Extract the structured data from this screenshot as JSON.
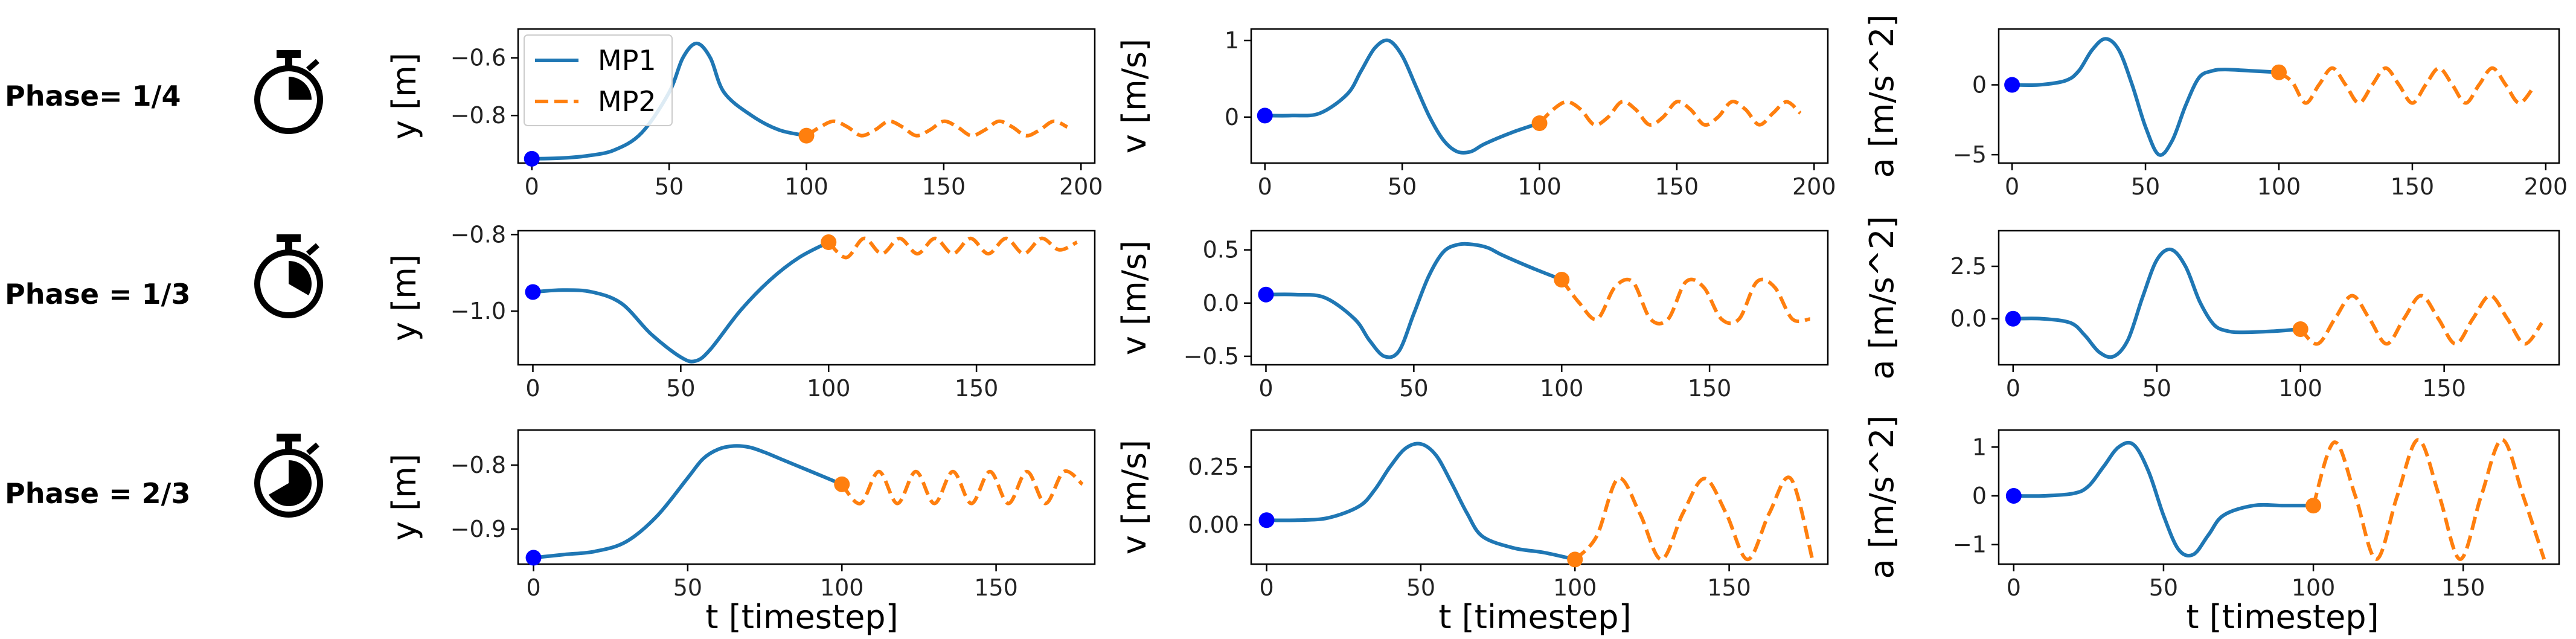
{
  "figure": {
    "rows": [
      {
        "label": "Phase= 1/4",
        "phase_fraction": 0.25
      },
      {
        "label": "Phase = 1/3",
        "phase_fraction": 0.3333
      },
      {
        "label": "Phase = 2/3",
        "phase_fraction": 0.6667
      }
    ],
    "legend": {
      "entries": [
        "MP1",
        "MP2"
      ],
      "location": "upper-left of top-left panel"
    },
    "colors": {
      "mp1": "#1f77b4",
      "mp2": "#ff7f0e",
      "start_dot": "#0000ff",
      "end_dot": "#ff7f0e"
    },
    "icons": [
      "stopwatch-icon"
    ]
  },
  "chart_data": [
    {
      "type": "line",
      "row": 0,
      "col": 0,
      "ylabel": "y [m]",
      "xlabel": "",
      "xticks": [
        0,
        50,
        100,
        150,
        200
      ],
      "yticks": [
        -0.8,
        -0.6
      ],
      "ytick_labels": [
        "−0.8",
        "−0.6"
      ],
      "xlim": [
        -5,
        205
      ],
      "ylim": [
        -0.965,
        -0.5
      ],
      "series": [
        {
          "name": "MP1",
          "x": [
            0,
            10,
            20,
            30,
            40,
            50,
            55,
            60,
            65,
            70,
            80,
            90,
            100
          ],
          "y": [
            -0.95,
            -0.948,
            -0.94,
            -0.92,
            -0.86,
            -0.72,
            -0.6,
            -0.55,
            -0.6,
            -0.72,
            -0.8,
            -0.85,
            -0.87
          ]
        },
        {
          "name": "MP2",
          "x": [
            100,
            105,
            110,
            115,
            120,
            125,
            130,
            135,
            140,
            145,
            150,
            155,
            160,
            165,
            170,
            175,
            180,
            185,
            190,
            195
          ],
          "y": [
            -0.87,
            -0.84,
            -0.82,
            -0.84,
            -0.87,
            -0.85,
            -0.82,
            -0.84,
            -0.87,
            -0.85,
            -0.82,
            -0.84,
            -0.87,
            -0.85,
            -0.82,
            -0.84,
            -0.87,
            -0.85,
            -0.82,
            -0.84
          ]
        }
      ],
      "points": [
        {
          "x": 0,
          "y": -0.95,
          "kind": "start"
        },
        {
          "x": 100,
          "y": -0.87,
          "kind": "end"
        }
      ]
    },
    {
      "type": "line",
      "row": 0,
      "col": 1,
      "ylabel": "v [m/s]",
      "xlabel": "",
      "xticks": [
        0,
        50,
        100,
        150,
        200
      ],
      "yticks": [
        0,
        1
      ],
      "ytick_labels": [
        "0",
        "1"
      ],
      "xlim": [
        -5,
        205
      ],
      "ylim": [
        -0.6,
        1.15
      ],
      "series": [
        {
          "name": "MP1",
          "x": [
            0,
            10,
            20,
            30,
            35,
            40,
            45,
            50,
            55,
            60,
            65,
            70,
            75,
            80,
            90,
            100
          ],
          "y": [
            0.02,
            0.02,
            0.05,
            0.3,
            0.6,
            0.9,
            1.0,
            0.8,
            0.4,
            0.0,
            -0.3,
            -0.45,
            -0.45,
            -0.35,
            -0.2,
            -0.08
          ]
        },
        {
          "name": "MP2",
          "x": [
            100,
            105,
            110,
            115,
            120,
            125,
            130,
            135,
            140,
            145,
            150,
            155,
            160,
            165,
            170,
            175,
            180,
            185,
            190,
            195
          ],
          "y": [
            -0.08,
            0.1,
            0.2,
            0.1,
            -0.1,
            0.0,
            0.2,
            0.1,
            -0.1,
            0.0,
            0.2,
            0.1,
            -0.1,
            0.0,
            0.2,
            0.1,
            -0.1,
            0.05,
            0.2,
            0.05
          ]
        }
      ],
      "points": [
        {
          "x": 0,
          "y": 0.02,
          "kind": "start"
        },
        {
          "x": 100,
          "y": -0.08,
          "kind": "end"
        }
      ]
    },
    {
      "type": "line",
      "row": 0,
      "col": 2,
      "ylabel": "a [m/s^2]",
      "xlabel": "",
      "xticks": [
        0,
        50,
        100,
        150,
        200
      ],
      "yticks": [
        -5,
        0
      ],
      "ytick_labels": [
        "−5",
        "0"
      ],
      "xlim": [
        -5,
        205
      ],
      "ylim": [
        -5.6,
        4.0
      ],
      "series": [
        {
          "name": "MP1",
          "x": [
            0,
            10,
            20,
            25,
            30,
            35,
            40,
            45,
            50,
            55,
            60,
            65,
            70,
            75,
            80,
            90,
            100
          ],
          "y": [
            0.0,
            0.0,
            0.3,
            1.0,
            2.5,
            3.3,
            2.5,
            0.0,
            -3.0,
            -5.0,
            -4.0,
            -1.5,
            0.5,
            1.0,
            1.1,
            1.0,
            0.9
          ]
        },
        {
          "name": "MP2",
          "x": [
            100,
            105,
            110,
            115,
            120,
            125,
            130,
            135,
            140,
            145,
            150,
            155,
            160,
            165,
            170,
            175,
            180,
            185,
            190,
            195
          ],
          "y": [
            0.9,
            0.2,
            -1.3,
            0.0,
            1.2,
            0.0,
            -1.3,
            0.0,
            1.2,
            0.0,
            -1.3,
            0.0,
            1.2,
            0.0,
            -1.3,
            0.0,
            1.2,
            0.0,
            -1.3,
            -0.3
          ]
        }
      ],
      "points": [
        {
          "x": 0,
          "y": 0.0,
          "kind": "start"
        },
        {
          "x": 100,
          "y": 0.9,
          "kind": "end"
        }
      ]
    },
    {
      "type": "line",
      "row": 1,
      "col": 0,
      "ylabel": "y [m]",
      "xlabel": "",
      "xticks": [
        0,
        50,
        100,
        150
      ],
      "yticks": [
        -1.0,
        -0.8
      ],
      "ytick_labels": [
        "−1.0",
        "−0.8"
      ],
      "xlim": [
        -5,
        190
      ],
      "ylim": [
        -1.14,
        -0.79
      ],
      "series": [
        {
          "name": "MP1",
          "x": [
            0,
            10,
            20,
            30,
            40,
            50,
            55,
            60,
            70,
            80,
            90,
            100
          ],
          "y": [
            -0.95,
            -0.945,
            -0.95,
            -0.98,
            -1.06,
            -1.12,
            -1.13,
            -1.1,
            -1.0,
            -0.92,
            -0.86,
            -0.82
          ]
        },
        {
          "name": "MP2",
          "x": [
            100,
            106,
            112,
            118,
            124,
            130,
            136,
            142,
            148,
            154,
            160,
            166,
            172,
            178,
            184
          ],
          "y": [
            -0.82,
            -0.86,
            -0.81,
            -0.85,
            -0.81,
            -0.85,
            -0.81,
            -0.85,
            -0.81,
            -0.85,
            -0.81,
            -0.85,
            -0.81,
            -0.84,
            -0.82
          ]
        }
      ],
      "points": [
        {
          "x": 0,
          "y": -0.95,
          "kind": "start"
        },
        {
          "x": 100,
          "y": -0.82,
          "kind": "end"
        }
      ]
    },
    {
      "type": "line",
      "row": 1,
      "col": 1,
      "ylabel": "v [m/s]",
      "xlabel": "",
      "xticks": [
        0,
        50,
        100,
        150
      ],
      "yticks": [
        -0.5,
        0.0,
        0.5
      ],
      "ytick_labels": [
        "−0.5",
        "0.0",
        "0.5"
      ],
      "xlim": [
        -5,
        190
      ],
      "ylim": [
        -0.58,
        0.68
      ],
      "series": [
        {
          "name": "MP1",
          "x": [
            0,
            10,
            20,
            30,
            35,
            40,
            45,
            50,
            55,
            60,
            65,
            70,
            75,
            80,
            90,
            100
          ],
          "y": [
            0.08,
            0.08,
            0.05,
            -0.15,
            -0.35,
            -0.5,
            -0.45,
            -0.1,
            0.25,
            0.48,
            0.55,
            0.55,
            0.52,
            0.45,
            0.33,
            0.22
          ]
        },
        {
          "name": "MP2",
          "x": [
            100,
            106,
            112,
            118,
            124,
            130,
            136,
            142,
            148,
            154,
            160,
            166,
            172,
            178,
            184
          ],
          "y": [
            0.22,
            0.0,
            -0.15,
            0.15,
            0.2,
            -0.15,
            -0.15,
            0.2,
            0.15,
            -0.15,
            -0.15,
            0.2,
            0.15,
            -0.15,
            -0.15
          ]
        }
      ],
      "points": [
        {
          "x": 0,
          "y": 0.08,
          "kind": "start"
        },
        {
          "x": 100,
          "y": 0.22,
          "kind": "end"
        }
      ]
    },
    {
      "type": "line",
      "row": 1,
      "col": 2,
      "ylabel": "a [m/s^2]",
      "xlabel": "",
      "xticks": [
        0,
        50,
        100,
        150
      ],
      "yticks": [
        0.0,
        2.5
      ],
      "ytick_labels": [
        "0.0",
        "2.5"
      ],
      "xlim": [
        -5,
        190
      ],
      "ylim": [
        -2.2,
        4.2
      ],
      "series": [
        {
          "name": "MP1",
          "x": [
            0,
            10,
            20,
            25,
            30,
            35,
            40,
            45,
            50,
            55,
            60,
            65,
            70,
            75,
            80,
            90,
            100
          ],
          "y": [
            0.0,
            0.0,
            -0.2,
            -0.8,
            -1.6,
            -1.8,
            -1.0,
            1.0,
            2.8,
            3.3,
            2.5,
            0.8,
            -0.3,
            -0.6,
            -0.65,
            -0.6,
            -0.5
          ]
        },
        {
          "name": "MP2",
          "x": [
            100,
            106,
            112,
            118,
            124,
            130,
            136,
            142,
            148,
            154,
            160,
            166,
            172,
            178,
            184
          ],
          "y": [
            -0.5,
            -1.2,
            0.0,
            1.1,
            0.0,
            -1.2,
            0.0,
            1.1,
            0.0,
            -1.2,
            0.0,
            1.1,
            0.0,
            -1.2,
            -0.2
          ]
        }
      ],
      "points": [
        {
          "x": 0,
          "y": 0.0,
          "kind": "start"
        },
        {
          "x": 100,
          "y": -0.5,
          "kind": "end"
        }
      ]
    },
    {
      "type": "line",
      "row": 2,
      "col": 0,
      "ylabel": "y [m]",
      "xlabel": "t [timestep]",
      "xticks": [
        0,
        50,
        100,
        150
      ],
      "yticks": [
        -0.9,
        -0.8
      ],
      "ytick_labels": [
        "−0.9",
        "−0.8"
      ],
      "xlim": [
        -5,
        182
      ],
      "ylim": [
        -0.955,
        -0.745
      ],
      "series": [
        {
          "name": "MP1",
          "x": [
            0,
            10,
            20,
            30,
            40,
            50,
            55,
            60,
            65,
            70,
            75,
            80,
            90,
            100
          ],
          "y": [
            -0.945,
            -0.94,
            -0.935,
            -0.92,
            -0.88,
            -0.82,
            -0.79,
            -0.775,
            -0.77,
            -0.772,
            -0.78,
            -0.79,
            -0.81,
            -0.83
          ]
        },
        {
          "name": "MP2",
          "x": [
            100,
            106,
            112,
            118,
            124,
            130,
            136,
            142,
            148,
            154,
            160,
            166,
            172,
            178
          ],
          "y": [
            -0.83,
            -0.86,
            -0.81,
            -0.86,
            -0.81,
            -0.86,
            -0.81,
            -0.86,
            -0.81,
            -0.86,
            -0.81,
            -0.86,
            -0.81,
            -0.83
          ]
        }
      ],
      "points": [
        {
          "x": 0,
          "y": -0.945,
          "kind": "start"
        },
        {
          "x": 100,
          "y": -0.83,
          "kind": "end"
        }
      ]
    },
    {
      "type": "line",
      "row": 2,
      "col": 1,
      "ylabel": "v [m/s]",
      "xlabel": "t [timestep]",
      "xticks": [
        0,
        50,
        100,
        150
      ],
      "yticks": [
        0.0,
        0.25
      ],
      "ytick_labels": [
        "0.00",
        "0.25"
      ],
      "xlim": [
        -5,
        182
      ],
      "ylim": [
        -0.17,
        0.41
      ],
      "series": [
        {
          "name": "MP1",
          "x": [
            0,
            10,
            20,
            30,
            35,
            40,
            45,
            50,
            55,
            60,
            65,
            70,
            80,
            90,
            100
          ],
          "y": [
            0.02,
            0.02,
            0.03,
            0.08,
            0.15,
            0.25,
            0.33,
            0.35,
            0.3,
            0.18,
            0.05,
            -0.05,
            -0.1,
            -0.12,
            -0.15
          ]
        },
        {
          "name": "MP2",
          "x": [
            100,
            107,
            114,
            121,
            128,
            135,
            142,
            149,
            156,
            163,
            170,
            177
          ],
          "y": [
            -0.15,
            -0.05,
            0.2,
            0.05,
            -0.15,
            0.05,
            0.2,
            0.05,
            -0.15,
            0.05,
            0.2,
            -0.15
          ]
        }
      ],
      "points": [
        {
          "x": 0,
          "y": 0.02,
          "kind": "start"
        },
        {
          "x": 100,
          "y": -0.15,
          "kind": "end"
        }
      ]
    },
    {
      "type": "line",
      "row": 2,
      "col": 2,
      "ylabel": "a [m/s^2]",
      "xlabel": "t [timestep]",
      "xticks": [
        0,
        50,
        100,
        150
      ],
      "yticks": [
        -1,
        0,
        1
      ],
      "ytick_labels": [
        "−1",
        "0",
        "1"
      ],
      "xlim": [
        -5,
        182
      ],
      "ylim": [
        -1.4,
        1.35
      ],
      "series": [
        {
          "name": "MP1",
          "x": [
            0,
            10,
            20,
            25,
            30,
            35,
            40,
            45,
            50,
            55,
            60,
            65,
            70,
            80,
            90,
            100
          ],
          "y": [
            0.0,
            0.0,
            0.05,
            0.2,
            0.6,
            1.0,
            1.05,
            0.5,
            -0.4,
            -1.1,
            -1.2,
            -0.8,
            -0.4,
            -0.2,
            -0.2,
            -0.2
          ]
        },
        {
          "name": "MP2",
          "x": [
            100,
            107,
            114,
            121,
            128,
            135,
            142,
            149,
            156,
            163,
            170,
            177
          ],
          "y": [
            -0.2,
            1.1,
            0.0,
            -1.3,
            0.0,
            1.15,
            0.0,
            -1.3,
            0.0,
            1.15,
            0.0,
            -1.3
          ]
        }
      ],
      "points": [
        {
          "x": 0,
          "y": 0.0,
          "kind": "start"
        },
        {
          "x": 100,
          "y": -0.2,
          "kind": "end"
        }
      ]
    }
  ]
}
